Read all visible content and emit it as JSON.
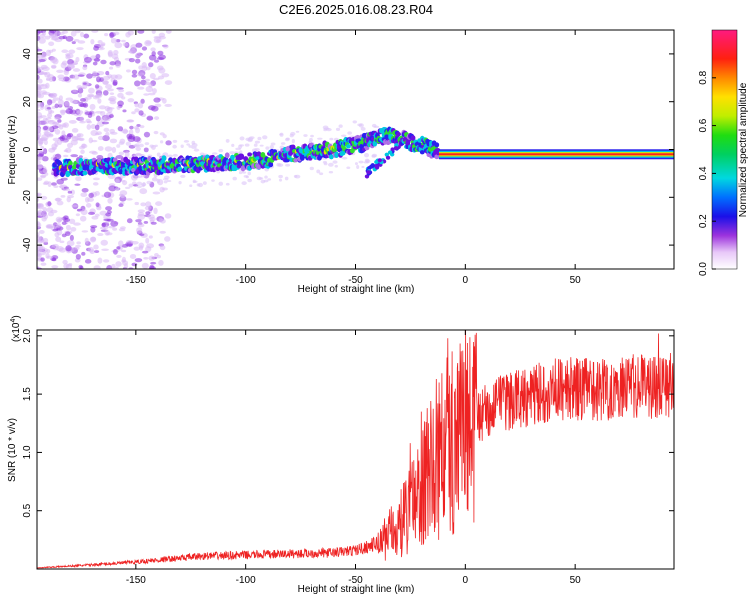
{
  "title": "C2E6.2025.016.08.23.R04",
  "chart_data": [
    {
      "type": "heatmap",
      "xlabel": "Height of straight line (km)",
      "ylabel": "Frequency (Hz)",
      "xlim": [
        -195,
        95
      ],
      "ylim": [
        -50,
        50
      ],
      "xticks": [
        -150,
        -100,
        -50,
        0,
        50
      ],
      "yticks": [
        -40,
        -20,
        0,
        20,
        40
      ],
      "colorbar": {
        "label": "Normalized spectral amplitude",
        "range": [
          0,
          1
        ],
        "ticks": [
          "0.0",
          "0.2",
          "0.4",
          "0.6",
          "0.8"
        ]
      },
      "ridge": {
        "x": [
          -195,
          -170,
          -150,
          -120,
          -100,
          -90,
          -80,
          -70,
          -60,
          -50,
          -45,
          -40,
          -35,
          -30,
          -25,
          -20,
          -15,
          -10,
          0,
          10,
          30,
          50,
          70,
          90,
          95
        ],
        "y": [
          -8,
          -7,
          -7,
          -6,
          -5,
          -4,
          -2,
          -1,
          0,
          2,
          3,
          5,
          6,
          5,
          3,
          2,
          0,
          -1,
          -2,
          -2,
          -2,
          -2,
          -2,
          -2,
          -2
        ]
      },
      "side_branch": {
        "x": [
          -45,
          -40,
          -35,
          -30
        ],
        "y": [
          -10,
          -6,
          -2,
          2
        ]
      }
    },
    {
      "type": "line",
      "xlabel": "Height of straight line (km)",
      "ylabel": "SNR (10 * v/v)",
      "exponent_label": "(x10",
      "exponent_power": "4",
      "exponent_close": ")",
      "xlim": [
        -195,
        95
      ],
      "ylim": [
        0,
        2.05
      ],
      "xticks": [
        -150,
        -100,
        -50,
        0,
        50
      ],
      "yticks": [
        "0.5",
        "1.0",
        "1.5",
        "2.0"
      ],
      "color": "#ee2222",
      "envelope": {
        "x": [
          -195,
          -175,
          -150,
          -120,
          -100,
          -80,
          -60,
          -50,
          -40,
          -30,
          -25,
          -20,
          -15,
          -10,
          -5,
          0,
          10,
          20,
          30,
          40,
          60,
          80,
          95
        ],
        "y": [
          0.01,
          0.03,
          0.06,
          0.11,
          0.12,
          0.13,
          0.14,
          0.16,
          0.22,
          0.4,
          0.55,
          0.75,
          0.95,
          1.1,
          1.2,
          1.3,
          1.4,
          1.5,
          1.55,
          1.6,
          1.6,
          1.62,
          1.65
        ]
      },
      "spikes": [
        {
          "x": -35,
          "y": 0.42
        },
        {
          "x": -25,
          "y": 1.08
        },
        {
          "x": -20,
          "y": 1.35
        },
        {
          "x": -12,
          "y": 1.6
        },
        {
          "x": -8,
          "y": 1.98
        },
        {
          "x": 88,
          "y": 2.02
        }
      ]
    }
  ]
}
